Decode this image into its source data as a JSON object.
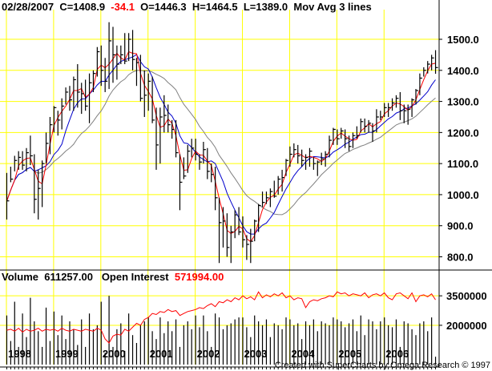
{
  "header": {
    "date": "02/28/2007",
    "close": "C=1408.9",
    "change": "-34.1",
    "open": "O=1446.3",
    "high": "H=1464.5",
    "low": "L=1389.0",
    "study": "Mov Avg 3 lines"
  },
  "volume_header": {
    "volume_label": "Volume",
    "volume_value": "611257.00",
    "oi_label": "Open Interest",
    "oi_value": "571994.00"
  },
  "credit": "Created with SuperCharts by Omega Research © 1997",
  "colors": {
    "grid": "#ffff00",
    "bars": "#000000",
    "ma_fast": "#ff0000",
    "ma_mid": "#0000cc",
    "ma_slow": "#808080",
    "open_interest": "#ff0000",
    "change_text": "#ff0000"
  },
  "chart_data": [
    {
      "type": "ohlc",
      "panel": "price",
      "x_ticks": [
        "1998",
        "1999",
        "2000",
        "2001",
        "2002",
        "2003",
        "2004",
        "2005",
        "2006"
      ],
      "y_ticks": [
        "800.0",
        "900.0",
        "1000.0",
        "1100.0",
        "1200.0",
        "1300.0",
        "1400.0",
        "1500.0"
      ],
      "ylim": [
        760,
        1580
      ],
      "grid": true,
      "x": [
        "1998-01",
        "1998-02",
        "1998-03",
        "1998-04",
        "1998-05",
        "1998-06",
        "1998-07",
        "1998-08",
        "1998-09",
        "1998-10",
        "1998-11",
        "1998-12",
        "1999-01",
        "1999-02",
        "1999-03",
        "1999-04",
        "1999-05",
        "1999-06",
        "1999-07",
        "1999-08",
        "1999-09",
        "1999-10",
        "1999-11",
        "1999-12",
        "2000-01",
        "2000-02",
        "2000-03",
        "2000-04",
        "2000-05",
        "2000-06",
        "2000-07",
        "2000-08",
        "2000-09",
        "2000-10",
        "2000-11",
        "2000-12",
        "2001-01",
        "2001-02",
        "2001-03",
        "2001-04",
        "2001-05",
        "2001-06",
        "2001-07",
        "2001-08",
        "2001-09",
        "2001-10",
        "2001-11",
        "2001-12",
        "2002-01",
        "2002-02",
        "2002-03",
        "2002-04",
        "2002-05",
        "2002-06",
        "2002-07",
        "2002-08",
        "2002-09",
        "2002-10",
        "2002-11",
        "2002-12",
        "2003-01",
        "2003-02",
        "2003-03",
        "2003-04",
        "2003-05",
        "2003-06",
        "2003-07",
        "2003-08",
        "2003-09",
        "2003-10",
        "2003-11",
        "2003-12",
        "2004-01",
        "2004-02",
        "2004-03",
        "2004-04",
        "2004-05",
        "2004-06",
        "2004-07",
        "2004-08",
        "2004-09",
        "2004-10",
        "2004-11",
        "2004-12",
        "2005-01",
        "2005-02",
        "2005-03",
        "2005-04",
        "2005-05",
        "2005-06",
        "2005-07",
        "2005-08",
        "2005-09",
        "2005-10",
        "2005-11",
        "2005-12",
        "2006-01",
        "2006-02",
        "2006-03",
        "2006-04",
        "2006-05",
        "2006-06",
        "2006-07",
        "2006-08",
        "2006-09",
        "2006-10",
        "2006-11",
        "2006-12",
        "2007-01",
        "2007-02"
      ],
      "close": [
        980,
        1050,
        1110,
        1120,
        1095,
        1135,
        1125,
        985,
        1020,
        1100,
        1165,
        1225,
        1280,
        1240,
        1285,
        1330,
        1305,
        1370,
        1330,
        1325,
        1285,
        1360,
        1390,
        1460,
        1400,
        1365,
        1495,
        1450,
        1420,
        1450,
        1430,
        1500,
        1435,
        1425,
        1310,
        1320,
        1365,
        1240,
        1160,
        1250,
        1255,
        1225,
        1210,
        1135,
        1040,
        1060,
        1140,
        1150,
        1130,
        1105,
        1145,
        1075,
        1065,
        990,
        910,
        915,
        830,
        880,
        935,
        880,
        855,
        840,
        850,
        915,
        965,
        975,
        990,
        1010,
        995,
        1050,
        1055,
        1110,
        1130,
        1145,
        1125,
        1110,
        1120,
        1140,
        1100,
        1105,
        1115,
        1130,
        1175,
        1210,
        1180,
        1205,
        1180,
        1155,
        1190,
        1190,
        1235,
        1220,
        1230,
        1205,
        1250,
        1250,
        1280,
        1280,
        1295,
        1310,
        1270,
        1270,
        1275,
        1305,
        1335,
        1375,
        1400,
        1420,
        1440,
        1409
      ],
      "high_low": [
        [
          920,
          1070
        ],
        [
          1040,
          1090
        ],
        [
          1075,
          1125
        ],
        [
          1080,
          1140
        ],
        [
          1080,
          1140
        ],
        [
          1075,
          1150
        ],
        [
          1095,
          1190
        ],
        [
          940,
          1130
        ],
        [
          920,
          1080
        ],
        [
          960,
          1110
        ],
        [
          1100,
          1200
        ],
        [
          1130,
          1250
        ],
        [
          1200,
          1285
        ],
        [
          1190,
          1270
        ],
        [
          1210,
          1310
        ],
        [
          1290,
          1345
        ],
        [
          1270,
          1350
        ],
        [
          1270,
          1380
        ],
        [
          1280,
          1420
        ],
        [
          1260,
          1360
        ],
        [
          1270,
          1370
        ],
        [
          1230,
          1390
        ],
        [
          1330,
          1400
        ],
        [
          1380,
          1475
        ],
        [
          1350,
          1480
        ],
        [
          1330,
          1440
        ],
        [
          1340,
          1555
        ],
        [
          1360,
          1540
        ],
        [
          1370,
          1480
        ],
        [
          1420,
          1480
        ],
        [
          1420,
          1520
        ],
        [
          1430,
          1520
        ],
        [
          1400,
          1530
        ],
        [
          1350,
          1440
        ],
        [
          1300,
          1450
        ],
        [
          1250,
          1400
        ],
        [
          1270,
          1390
        ],
        [
          1230,
          1380
        ],
        [
          1080,
          1280
        ],
        [
          1100,
          1280
        ],
        [
          1200,
          1320
        ],
        [
          1200,
          1290
        ],
        [
          1180,
          1240
        ],
        [
          1120,
          1240
        ],
        [
          950,
          1130
        ],
        [
          1050,
          1120
        ],
        [
          1070,
          1160
        ],
        [
          1120,
          1180
        ],
        [
          1110,
          1180
        ],
        [
          1080,
          1130
        ],
        [
          1100,
          1170
        ],
        [
          1050,
          1150
        ],
        [
          1040,
          1100
        ],
        [
          950,
          1090
        ],
        [
          780,
          990
        ],
        [
          830,
          960
        ],
        [
          800,
          940
        ],
        [
          780,
          900
        ],
        [
          860,
          950
        ],
        [
          870,
          960
        ],
        [
          830,
          930
        ],
        [
          790,
          870
        ],
        [
          780,
          890
        ],
        [
          850,
          920
        ],
        [
          880,
          970
        ],
        [
          960,
          1010
        ],
        [
          970,
          1010
        ],
        [
          960,
          1020
        ],
        [
          990,
          1045
        ],
        [
          1000,
          1060
        ],
        [
          1010,
          1080
        ],
        [
          1060,
          1115
        ],
        [
          1090,
          1155
        ],
        [
          1120,
          1165
        ],
        [
          1100,
          1160
        ],
        [
          1090,
          1145
        ],
        [
          1080,
          1130
        ],
        [
          1090,
          1150
        ],
        [
          1080,
          1120
        ],
        [
          1060,
          1110
        ],
        [
          1095,
          1135
        ],
        [
          1090,
          1140
        ],
        [
          1120,
          1190
        ],
        [
          1160,
          1215
        ],
        [
          1160,
          1210
        ],
        [
          1180,
          1215
        ],
        [
          1150,
          1210
        ],
        [
          1140,
          1190
        ],
        [
          1150,
          1200
        ],
        [
          1180,
          1220
        ],
        [
          1200,
          1245
        ],
        [
          1200,
          1245
        ],
        [
          1200,
          1240
        ],
        [
          1170,
          1230
        ],
        [
          1200,
          1275
        ],
        [
          1240,
          1270
        ],
        [
          1250,
          1295
        ],
        [
          1250,
          1295
        ],
        [
          1270,
          1310
        ],
        [
          1280,
          1320
        ],
        [
          1240,
          1330
        ],
        [
          1230,
          1290
        ],
        [
          1225,
          1290
        ],
        [
          1250,
          1310
        ],
        [
          1290,
          1340
        ],
        [
          1320,
          1390
        ],
        [
          1380,
          1410
        ],
        [
          1390,
          1430
        ],
        [
          1400,
          1450
        ],
        [
          1389,
          1465
        ]
      ],
      "moving_averages": [
        "fast (red)",
        "medium (blue)",
        "slow (gray)"
      ]
    },
    {
      "type": "bar",
      "panel": "volume",
      "y_ticks": [
        "2000000",
        "3500000"
      ],
      "ylim": [
        0,
        4200000
      ],
      "volume": [
        2500000,
        1200000,
        3200000,
        900000,
        2600000,
        1400000,
        3400000,
        2200000,
        1700000,
        900000,
        2900000,
        1200000,
        2700000,
        1500000,
        2500000,
        1300000,
        2200000,
        1800000,
        1000000,
        2300000,
        900000,
        2600000,
        1800000,
        2000000,
        3200000,
        600000,
        3500000,
        900000,
        1800000,
        2100000,
        700000,
        2600000,
        1500000,
        1100000,
        2000000,
        2200000,
        2400000,
        1700000,
        1300000,
        2400000,
        1600000,
        2200000,
        1700000,
        2300000,
        900000,
        2000000,
        2200000,
        1800000,
        2500000,
        1900000,
        2500000,
        1700000,
        900000,
        2600000,
        2400000,
        1800000,
        2000000,
        2100000,
        2300000,
        2400000,
        2400000,
        1900000,
        1400000,
        2500000,
        2200000,
        2000000,
        2300000,
        1400000,
        2100000,
        2000000,
        1800000,
        2400000,
        2300000,
        2000000,
        2100000,
        1300000,
        2200000,
        2000000,
        2300000,
        1700000,
        2200000,
        2100000,
        2000000,
        2400000,
        2300000,
        2200000,
        1900000,
        2100000,
        2300000,
        1700000,
        2500000,
        1500000,
        2300000,
        2200000,
        1800000,
        2200000,
        2400000,
        2000000,
        1900000,
        2300000,
        900000,
        2200000,
        2100000,
        1800000,
        1500000,
        2100000,
        2200000,
        1700000,
        2400000,
        400000
      ],
      "open_interest": [
        1750000,
        1800000,
        1700000,
        1850000,
        1650000,
        1800000,
        1700000,
        1750000,
        1850000,
        1700000,
        1800000,
        1750000,
        1800000,
        1700000,
        1850000,
        1750000,
        1700000,
        1800000,
        1750000,
        1700000,
        1800000,
        1750000,
        1700000,
        1850000,
        1750000,
        1300000,
        1100000,
        1450000,
        1550000,
        1500000,
        1800000,
        1700000,
        1900000,
        2100000,
        2000000,
        2300000,
        2400000,
        2600000,
        2550000,
        2700000,
        2650000,
        2800000,
        2700000,
        2750000,
        2500000,
        2600000,
        2700000,
        2750000,
        2800000,
        2900000,
        2850000,
        3000000,
        3100000,
        2950000,
        3200000,
        3150000,
        3300000,
        3200000,
        3400000,
        3300000,
        3500000,
        3350000,
        3450000,
        3300000,
        3700000,
        3400000,
        3550000,
        3450000,
        3600000,
        3500000,
        3650000,
        3400000,
        3500000,
        3300000,
        3400000,
        3350000,
        2900000,
        3200000,
        3300000,
        3250000,
        3350000,
        3400000,
        3500000,
        3450000,
        3700000,
        3600000,
        3650000,
        3500000,
        3600000,
        3550000,
        3500000,
        3650000,
        3400000,
        3550000,
        3600000,
        3500000,
        3650000,
        3400000,
        3300000,
        3600000,
        3650000,
        3500000,
        3350000,
        3650000,
        3200000,
        3500000,
        3550000,
        3450000,
        3600000,
        3300000
      ]
    }
  ]
}
